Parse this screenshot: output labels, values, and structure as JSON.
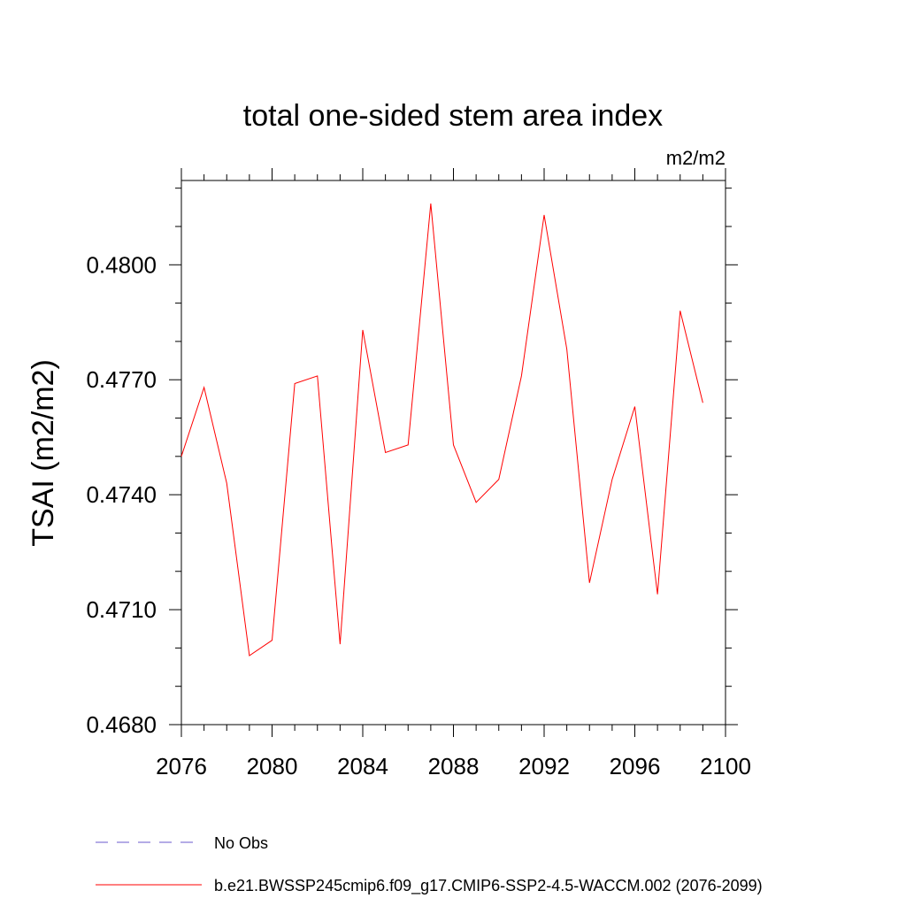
{
  "chart_data": {
    "type": "line",
    "title": "total one-sided stem area index",
    "units": "m2/m2",
    "ylabel": "TSAI  (m2/m2)",
    "xlabel": "",
    "xlim": [
      2076,
      2100
    ],
    "ylim": [
      0.468,
      0.4822
    ],
    "x_ticks": [
      2076,
      2080,
      2084,
      2088,
      2092,
      2096,
      2100
    ],
    "x_tick_labels": [
      "2076",
      "2080",
      "2084",
      "2088",
      "2092",
      "2096",
      "2100"
    ],
    "y_ticks": [
      0.468,
      0.471,
      0.474,
      0.477,
      0.48
    ],
    "y_tick_labels": [
      "0.4680",
      "0.4710",
      "0.4740",
      "0.4770",
      "0.4800"
    ],
    "grid": false,
    "legend_position": "bottom",
    "series": [
      {
        "name": "b.e21.BWSSP245cmip6.f09_g17.CMIP6-SSP2-4.5-WACCM.002 (2076-2099)",
        "color": "#ff0000",
        "style": "solid",
        "x": [
          2076,
          2077,
          2078,
          2079,
          2080,
          2081,
          2082,
          2083,
          2084,
          2085,
          2086,
          2087,
          2088,
          2089,
          2090,
          2091,
          2092,
          2093,
          2094,
          2095,
          2096,
          2097,
          2098,
          2099
        ],
        "y": [
          0.475,
          0.4768,
          0.4743,
          0.4698,
          0.4702,
          0.4769,
          0.4771,
          0.4701,
          0.4783,
          0.4751,
          0.4753,
          0.4816,
          0.4753,
          0.4738,
          0.4744,
          0.4771,
          0.4813,
          0.4778,
          0.4717,
          0.4744,
          0.4763,
          0.4714,
          0.4788,
          0.4764
        ]
      },
      {
        "name": "No Obs",
        "color": "#6a5acd",
        "style": "dashed",
        "x": [],
        "y": []
      }
    ]
  }
}
